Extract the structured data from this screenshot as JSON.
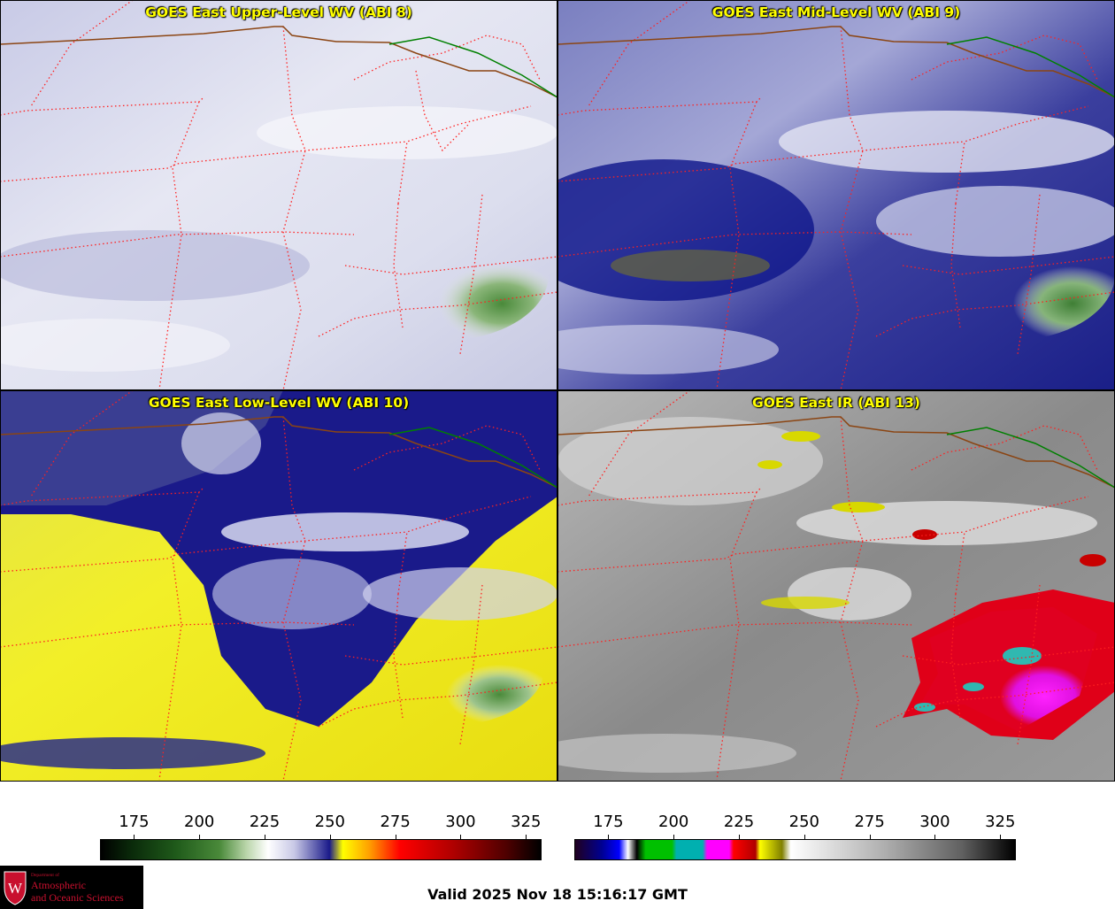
{
  "panels": [
    {
      "id": "upper",
      "title": "GOES East Upper-Level WV (ABI 8)"
    },
    {
      "id": "mid",
      "title": "GOES East Mid-Level WV (ABI 9)"
    },
    {
      "id": "low",
      "title": "GOES East Low-Level WV (ABI 10)"
    },
    {
      "id": "ir",
      "title": "GOES East IR (ABI 13)"
    }
  ],
  "colorbars": [
    {
      "name": "wv-colorbar",
      "ticks": [
        "175",
        "200",
        "225",
        "250",
        "275",
        "300",
        "325"
      ],
      "range": [
        162,
        331
      ]
    },
    {
      "name": "ir-colorbar",
      "ticks": [
        "175",
        "200",
        "225",
        "250",
        "275",
        "300",
        "325"
      ],
      "range": [
        162,
        331
      ]
    }
  ],
  "footer": {
    "valid": "Valid 2025 Nov 18 15:16:17 GMT"
  },
  "logo": {
    "department": "Department of",
    "line1": "Atmospheric",
    "line2": "and Oceanic Sciences",
    "crest": "W"
  },
  "colors": {
    "border_state": "#ff2020",
    "border_intl": "#8b4513",
    "border_coast": "#008000",
    "title": "#ffff00"
  }
}
